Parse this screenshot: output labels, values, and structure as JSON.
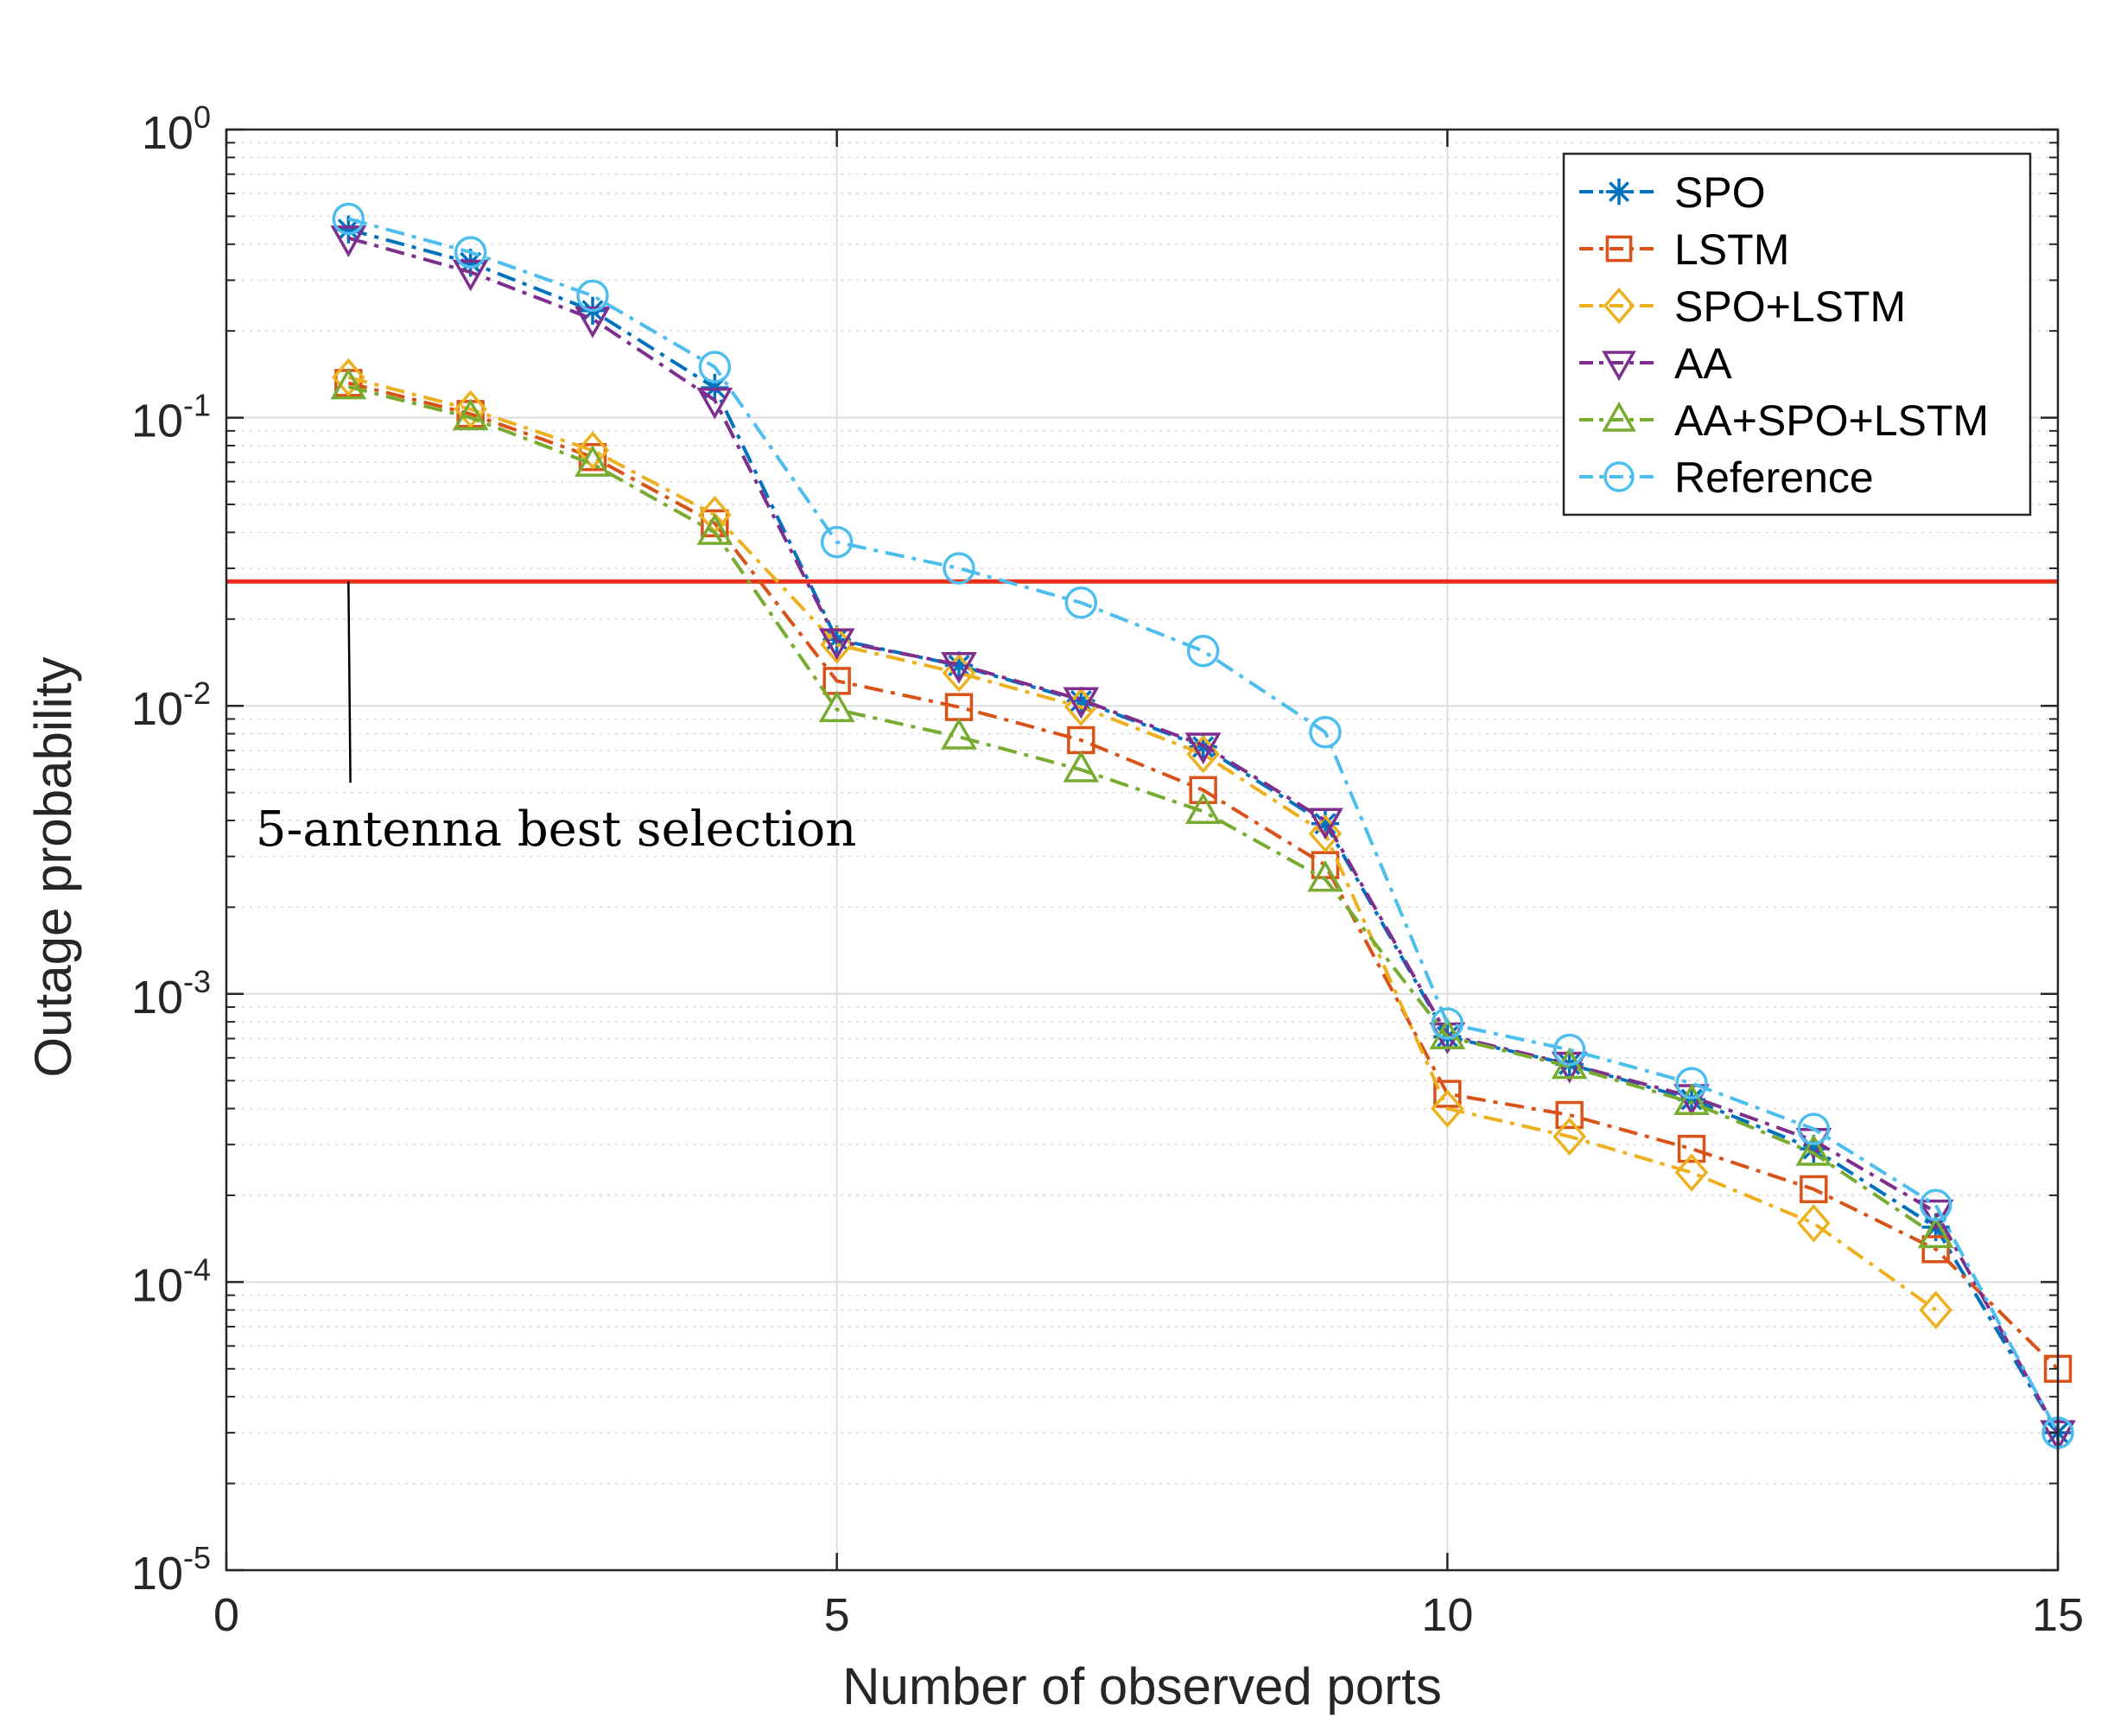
{
  "chart_data": {
    "type": "line",
    "title": "",
    "xlabel": "Number of observed ports",
    "ylabel": "Outage probability",
    "xscale": "linear",
    "yscale": "log",
    "xlim": [
      0,
      15
    ],
    "ylim": [
      1e-05,
      1
    ],
    "grid": true,
    "xticks": [
      {
        "value": 0,
        "label": "0"
      },
      {
        "value": 5,
        "label": "5"
      },
      {
        "value": 10,
        "label": "10"
      },
      {
        "value": 15,
        "label": "15"
      }
    ],
    "yticks": [
      {
        "value": 1,
        "base": "10",
        "exp": "0"
      },
      {
        "value": 0.1,
        "base": "10",
        "exp": "-1"
      },
      {
        "value": 0.01,
        "base": "10",
        "exp": "-2"
      },
      {
        "value": 0.001,
        "base": "10",
        "exp": "-3"
      },
      {
        "value": 0.0001,
        "base": "10",
        "exp": "-4"
      },
      {
        "value": 1e-05,
        "base": "10",
        "exp": "-5"
      }
    ],
    "legend_position": "top-right",
    "series": [
      {
        "name": "SPO",
        "marker": "star",
        "color": "#0072BD",
        "x": [
          1,
          2,
          3,
          4,
          5,
          6,
          7,
          8,
          9,
          10,
          11,
          12,
          13,
          14,
          15
        ],
        "y": [
          0.45,
          0.345,
          0.235,
          0.127,
          0.017,
          0.0138,
          0.0104,
          0.0072,
          0.0039,
          0.00071,
          0.00057,
          0.00043,
          0.00029,
          0.000155,
          3e-05
        ]
      },
      {
        "name": "LSTM",
        "marker": "square",
        "color": "#D95319",
        "x": [
          1,
          2,
          3,
          4,
          5,
          6,
          7,
          8,
          9,
          10,
          11,
          12,
          13,
          14,
          15
        ],
        "y": [
          0.132,
          0.103,
          0.073,
          0.043,
          0.0122,
          0.0099,
          0.0076,
          0.0051,
          0.0028,
          0.00045,
          0.00038,
          0.00029,
          0.00021,
          0.00013,
          5e-05
        ]
      },
      {
        "name": "SPO+LSTM",
        "marker": "diamond",
        "color": "#EDB120",
        "x": [
          1,
          2,
          3,
          4,
          5,
          6,
          7,
          8,
          9,
          10,
          11,
          12,
          13,
          14
        ],
        "y": [
          0.138,
          0.107,
          0.077,
          0.046,
          0.0163,
          0.013,
          0.0099,
          0.0068,
          0.0036,
          0.0004,
          0.00032,
          0.00024,
          0.00016,
          8e-05
        ]
      },
      {
        "name": "AA",
        "marker": "triangle-down",
        "color": "#7E2F8E",
        "x": [
          1,
          2,
          3,
          4,
          5,
          6,
          7,
          8,
          9,
          10,
          11,
          12,
          13,
          14,
          15
        ],
        "y": [
          0.42,
          0.32,
          0.22,
          0.115,
          0.0168,
          0.0139,
          0.0105,
          0.0073,
          0.004,
          0.00072,
          0.00057,
          0.00044,
          0.00031,
          0.000175,
          3e-05
        ]
      },
      {
        "name": "AA+SPO+LSTM",
        "marker": "triangle-up",
        "color": "#77AC30",
        "x": [
          1,
          2,
          3,
          4,
          5,
          6,
          7,
          8,
          9,
          10,
          11,
          12,
          13,
          14
        ],
        "y": [
          0.128,
          0.1,
          0.069,
          0.04,
          0.0097,
          0.0078,
          0.006,
          0.0043,
          0.0025,
          0.00071,
          0.00056,
          0.00042,
          0.00028,
          0.000145
        ]
      },
      {
        "name": "Reference",
        "marker": "circle",
        "color": "#4DBEEE",
        "x": [
          1,
          2,
          3,
          4,
          5,
          6,
          7,
          8,
          9,
          10,
          11,
          12,
          13,
          14,
          15
        ],
        "y": [
          0.49,
          0.375,
          0.265,
          0.15,
          0.037,
          0.03,
          0.0228,
          0.0155,
          0.0081,
          0.00079,
          0.00064,
          0.00049,
          0.00034,
          0.000185,
          3e-05
        ]
      }
    ],
    "reference_line": {
      "y": 0.027,
      "color": "#E8301C"
    },
    "annotations": [
      {
        "text": "5-antenna best selection",
        "x": 2.7,
        "y": 0.0037,
        "arrow_to": [
          1.0,
          0.027
        ]
      }
    ]
  }
}
